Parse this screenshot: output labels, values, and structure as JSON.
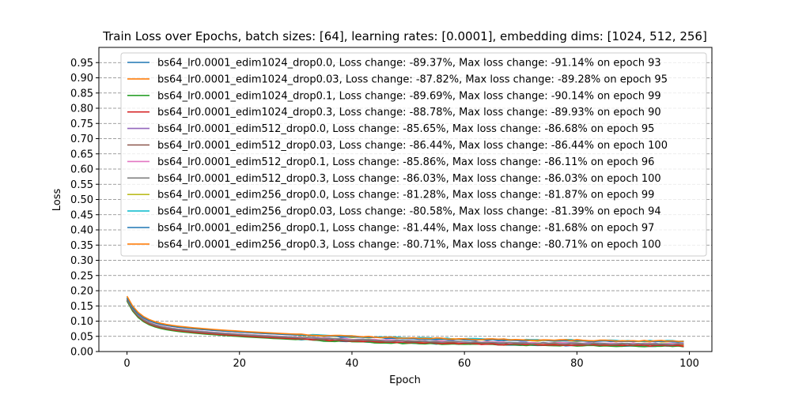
{
  "chart_data": {
    "type": "line",
    "title": "Train Loss over Epochs, batch sizes: [64], learning rates: [0.0001], embedding dims: [1024, 512, 256]",
    "xlabel": "Epoch",
    "ylabel": "Loss",
    "xlim": [
      -5,
      104
    ],
    "ylim": [
      0,
      1.0
    ],
    "x_ticks": [
      0,
      20,
      40,
      60,
      80,
      100
    ],
    "y_ticks": [
      0.0,
      0.05,
      0.1,
      0.15,
      0.2,
      0.25,
      0.3,
      0.35,
      0.4,
      0.45,
      0.5,
      0.55,
      0.6,
      0.65,
      0.7,
      0.75,
      0.8,
      0.85,
      0.9,
      0.95
    ],
    "y_tick_labels": [
      "0.00",
      "0.05",
      "0.10",
      "0.15",
      "0.20",
      "0.25",
      "0.30",
      "0.35",
      "0.40",
      "0.45",
      "0.50",
      "0.55",
      "0.60",
      "0.65",
      "0.70",
      "0.75",
      "0.80",
      "0.85",
      "0.90",
      "0.95"
    ],
    "grid": "y-dashed",
    "legend_position": "upper-center",
    "epochs": [
      0,
      99
    ],
    "series": [
      {
        "name": "bs64_lr0.0001_edim1024_drop0.0, Loss change: -89.37%, Max loss change: -91.14% on epoch 93",
        "color": "#1f77b4",
        "start": 0.168,
        "end": 0.018
      },
      {
        "name": "bs64_lr0.0001_edim1024_drop0.03, Loss change: -87.82%, Max loss change: -89.28% on epoch 95",
        "color": "#ff7f0e",
        "start": 0.172,
        "end": 0.021
      },
      {
        "name": "bs64_lr0.0001_edim1024_drop0.1, Loss change: -89.69%, Max loss change: -90.14% on epoch 99",
        "color": "#2ca02c",
        "start": 0.166,
        "end": 0.017
      },
      {
        "name": "bs64_lr0.0001_edim1024_drop0.3, Loss change: -88.78%, Max loss change: -89.93% on epoch 90",
        "color": "#d62728",
        "start": 0.17,
        "end": 0.019
      },
      {
        "name": "bs64_lr0.0001_edim512_drop0.0, Loss change: -85.65%, Max loss change: -86.68% on epoch 95",
        "color": "#9467bd",
        "start": 0.172,
        "end": 0.025
      },
      {
        "name": "bs64_lr0.0001_edim512_drop0.03, Loss change: -86.44%, Max loss change: -86.44% on epoch 100",
        "color": "#8c564b",
        "start": 0.17,
        "end": 0.023
      },
      {
        "name": "bs64_lr0.0001_edim512_drop0.1, Loss change: -85.86%, Max loss change: -86.11% on epoch 96",
        "color": "#e377c2",
        "start": 0.174,
        "end": 0.025
      },
      {
        "name": "bs64_lr0.0001_edim512_drop0.3, Loss change: -86.03%, Max loss change: -86.03% on epoch 100",
        "color": "#7f7f7f",
        "start": 0.172,
        "end": 0.024
      },
      {
        "name": "bs64_lr0.0001_edim256_drop0.0, Loss change: -81.28%, Max loss change: -81.87% on epoch 99",
        "color": "#bcbd22",
        "start": 0.176,
        "end": 0.033
      },
      {
        "name": "bs64_lr0.0001_edim256_drop0.03, Loss change: -80.58%, Max loss change: -81.39% on epoch 94",
        "color": "#17becf",
        "start": 0.178,
        "end": 0.035
      },
      {
        "name": "bs64_lr0.0001_edim256_drop0.1, Loss change: -81.44%, Max loss change: -81.68% on epoch 97",
        "color": "#1f77b4",
        "start": 0.176,
        "end": 0.033
      },
      {
        "name": "bs64_lr0.0001_edim256_drop0.3, Loss change: -80.71%, Max loss change: -80.71% on epoch 100",
        "color": "#ff7f0e",
        "start": 0.182,
        "end": 0.035
      }
    ]
  }
}
